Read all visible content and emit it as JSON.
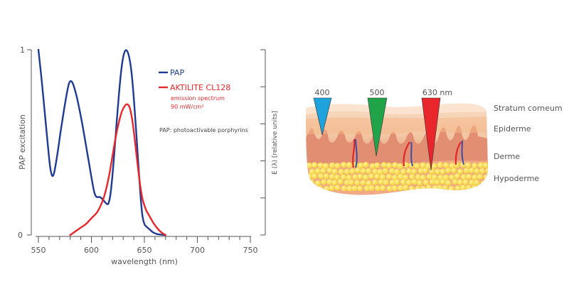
{
  "chart_data": {
    "type": "line",
    "title": "",
    "xlabel": "wavelength (nm)",
    "ylabel_left": "PAP excitation",
    "ylabel_right": "E (λ) [relative units]",
    "xlim": [
      550,
      750
    ],
    "ylim": [
      0,
      1
    ],
    "x_ticks_major": [
      550,
      600,
      650,
      700,
      750
    ],
    "x_tick_labels": [
      "550",
      "600",
      "650",
      "700",
      "750"
    ],
    "x_minor_step": 10,
    "y_ticks_left": [
      0,
      1
    ],
    "y_tick_labels_left": [
      "0",
      "1"
    ],
    "right_axis_tick_count": 6,
    "grid": false,
    "legend_position": "top-right",
    "series": [
      {
        "name": "PAP",
        "color": "#1f3a93",
        "x": [
          550,
          553,
          556,
          559,
          561,
          563,
          565,
          568,
          571,
          574,
          577,
          579,
          581,
          583,
          586,
          589,
          592,
          595,
          598,
          601,
          603,
          605,
          608,
          611,
          614,
          616,
          618,
          620,
          622,
          624,
          626,
          628,
          630,
          632,
          634,
          636,
          638,
          640,
          642,
          644,
          646,
          648,
          650,
          652,
          655,
          658,
          662,
          666,
          670
        ],
        "y": [
          1.0,
          0.84,
          0.66,
          0.48,
          0.37,
          0.32,
          0.34,
          0.44,
          0.56,
          0.67,
          0.77,
          0.82,
          0.83,
          0.81,
          0.75,
          0.67,
          0.58,
          0.48,
          0.38,
          0.28,
          0.225,
          0.205,
          0.205,
          0.19,
          0.17,
          0.17,
          0.22,
          0.33,
          0.47,
          0.62,
          0.76,
          0.88,
          0.96,
          0.995,
          0.99,
          0.95,
          0.87,
          0.74,
          0.58,
          0.41,
          0.24,
          0.11,
          0.06,
          0.045,
          0.03,
          0.015,
          0.005,
          0.002,
          0.0
        ]
      },
      {
        "name": "AKTILITE CL128",
        "subtitle": "emission spectrum 90 mW/cm²",
        "color": "#e8262b",
        "x": [
          580,
          585,
          590,
          595,
          600,
          605,
          608,
          611,
          614,
          617,
          620,
          623,
          626,
          629,
          632,
          634,
          636,
          638,
          640,
          642,
          644,
          646,
          648,
          650,
          652,
          655,
          658,
          661,
          664,
          667,
          670
        ],
        "y": [
          0.0,
          0.02,
          0.04,
          0.06,
          0.09,
          0.12,
          0.15,
          0.19,
          0.25,
          0.33,
          0.43,
          0.53,
          0.61,
          0.67,
          0.7,
          0.705,
          0.69,
          0.64,
          0.56,
          0.46,
          0.36,
          0.27,
          0.2,
          0.16,
          0.13,
          0.1,
          0.07,
          0.045,
          0.025,
          0.01,
          0.0
        ]
      }
    ],
    "legend": [
      {
        "label": "PAP",
        "color": "#1f3a93"
      },
      {
        "label": "AKTILITE CL128",
        "color": "#e8262b"
      }
    ],
    "legend_sub_lines": [
      "emission spectrum",
      "90 mW/cm²"
    ],
    "annotation": "PAP: photoactivable porphyrins"
  },
  "skin_diagram": {
    "wavelength_markers": [
      {
        "label": "400",
        "color": "#1ea3dc",
        "depth_layer": "Epiderme"
      },
      {
        "label": "500",
        "color": "#21a34a",
        "depth_layer": "Derme"
      },
      {
        "label": "630 nm",
        "color": "#e8262b",
        "depth_layer": "Hypoderme"
      }
    ],
    "layers": [
      {
        "label": "Stratum corneum"
      },
      {
        "label": "Epiderme"
      },
      {
        "label": "Derme"
      },
      {
        "label": "Hypoderme"
      }
    ],
    "colors": {
      "stratum": "#f7d9bf",
      "epiderme": "#f2c19c",
      "derme": "#e58f74",
      "hypoderme": "#f2a985",
      "fat": "#f9e04b",
      "vessel_red": "#e0262b",
      "vessel_blue": "#3a4ea3"
    }
  }
}
